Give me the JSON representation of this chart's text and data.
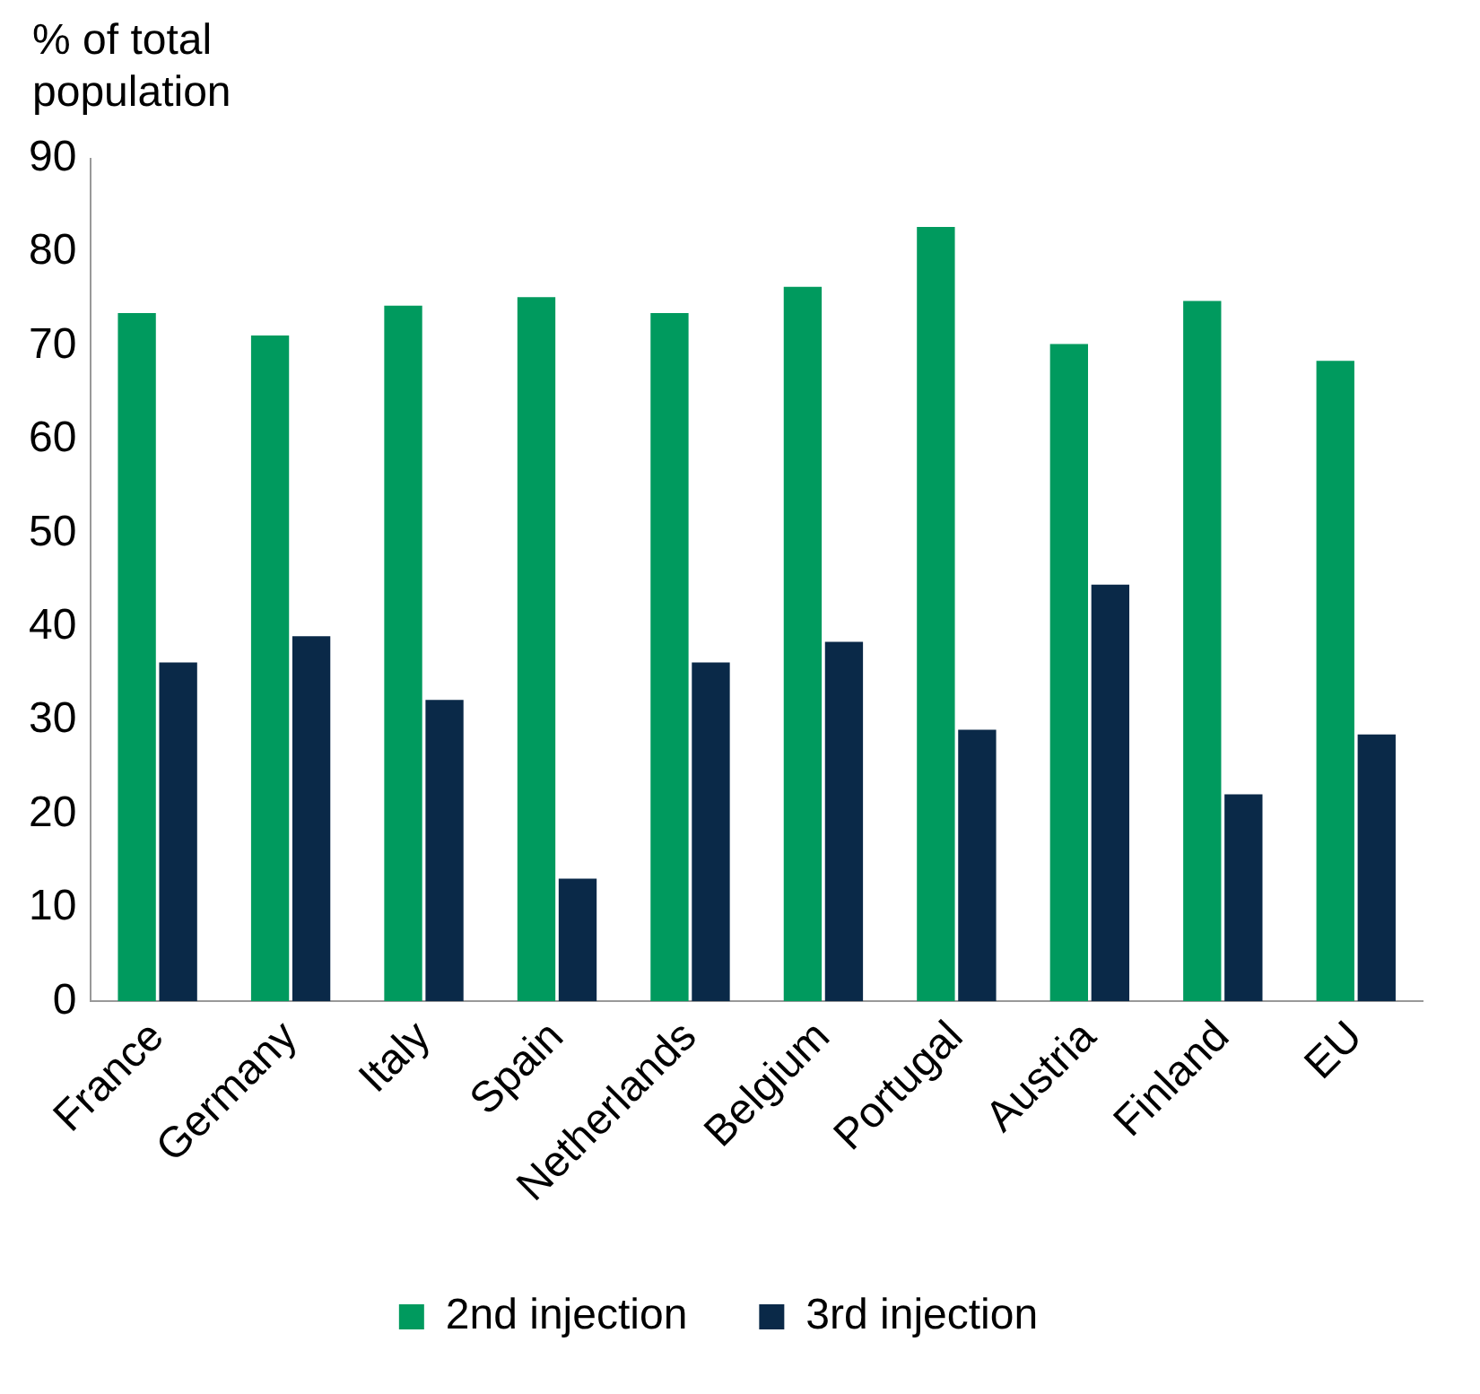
{
  "chart_data": {
    "type": "bar",
    "ylabel": "% of total population",
    "categories": [
      "France",
      "Germany",
      "Italy",
      "Spain",
      "Netherlands",
      "Belgium",
      "Portugal",
      "Austria",
      "Finland",
      "EU"
    ],
    "series": [
      {
        "name": "2nd injection",
        "color": "#009a5e",
        "values": [
          73.5,
          71.1,
          74.3,
          75.2,
          73.5,
          76.3,
          82.7,
          70.2,
          74.8,
          68.4
        ]
      },
      {
        "name": "3rd injection",
        "color": "#0a2948",
        "values": [
          36.2,
          39.0,
          32.2,
          13.1,
          36.2,
          38.4,
          29.0,
          44.5,
          22.1,
          28.5
        ]
      }
    ],
    "ylim": [
      0,
      90
    ],
    "yticks": [
      0,
      10,
      20,
      30,
      40,
      50,
      60,
      70,
      80,
      90
    ],
    "grid": false,
    "legend": "bottom"
  }
}
